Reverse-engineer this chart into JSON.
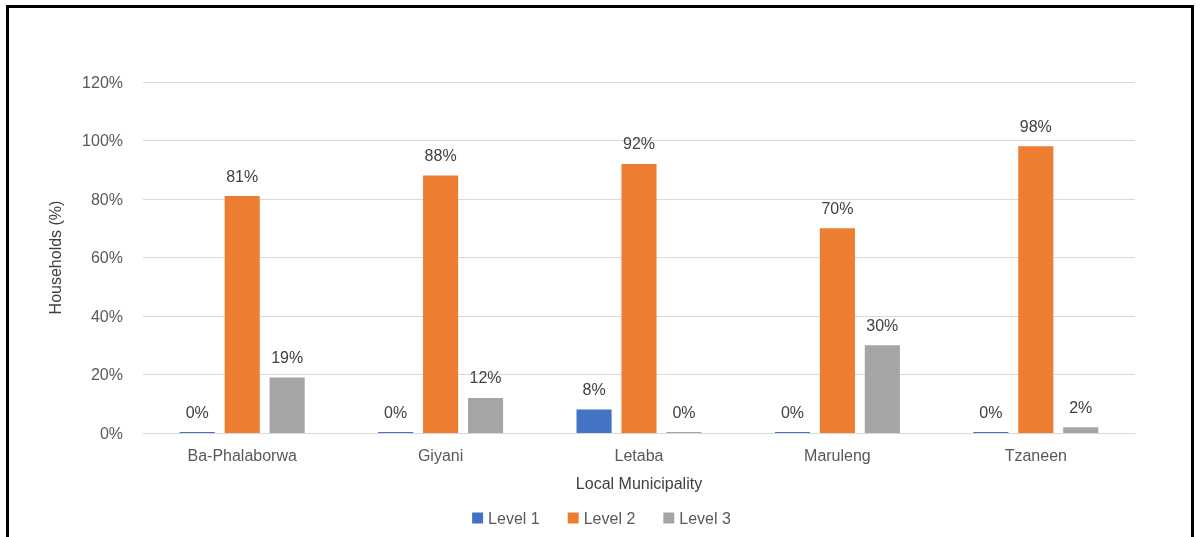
{
  "chart_data": {
    "type": "bar",
    "xlabel": "Local Municipality",
    "ylabel": "Households (%)",
    "categories": [
      "Ba-Phalaborwa",
      "Giyani",
      "Letaba",
      "Maruleng",
      "Tzaneen"
    ],
    "series": [
      {
        "name": "Level 1",
        "color": "#4472c4",
        "values": [
          0,
          0,
          8,
          0,
          0
        ],
        "value_labels": [
          "0%",
          "0%",
          "8%",
          "0%",
          "0%"
        ]
      },
      {
        "name": "Level 2",
        "color": "#ed7d31",
        "values": [
          81,
          88,
          92,
          70,
          98
        ],
        "value_labels": [
          "81%",
          "88%",
          "92%",
          "70%",
          "98%"
        ]
      },
      {
        "name": "Level 3",
        "color": "#a5a5a5",
        "values": [
          19,
          12,
          0,
          30,
          2
        ],
        "value_labels": [
          "19%",
          "12%",
          "0%",
          "30%",
          "2%"
        ]
      }
    ],
    "ylim": [
      0,
      120
    ],
    "yticks": [
      {
        "value": 0,
        "label": "0%"
      },
      {
        "value": 20,
        "label": "20%"
      },
      {
        "value": 40,
        "label": "40%"
      },
      {
        "value": 60,
        "label": "60%"
      },
      {
        "value": 80,
        "label": "80%"
      },
      {
        "value": 100,
        "label": "100%"
      },
      {
        "value": 120,
        "label": "120%"
      }
    ],
    "grid": "y",
    "legend": "bottom"
  }
}
